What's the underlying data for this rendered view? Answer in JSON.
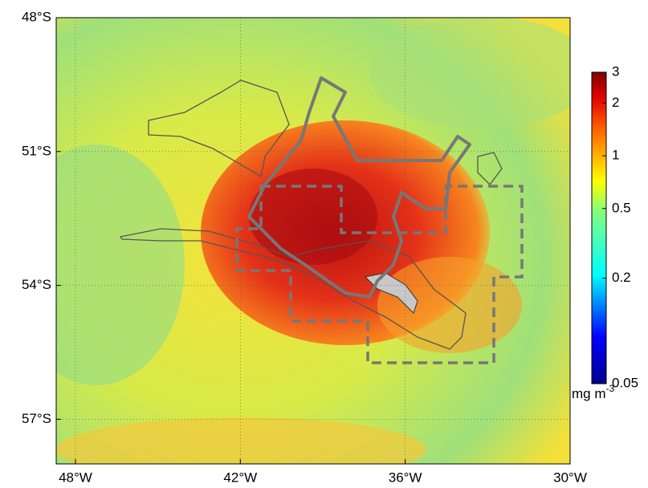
{
  "chart_data": {
    "type": "map",
    "xlim": [
      -48.7,
      -30
    ],
    "ylim": [
      -58,
      -48
    ],
    "xticks": [
      {
        "value": -48,
        "label": "48°W"
      },
      {
        "value": -42,
        "label": "42°W"
      },
      {
        "value": -36,
        "label": "36°W"
      },
      {
        "value": -30,
        "label": "30°W"
      }
    ],
    "yticks": [
      {
        "value": -48,
        "label": "48°S"
      },
      {
        "value": -51,
        "label": "51°S"
      },
      {
        "value": -54,
        "label": "54°S"
      },
      {
        "value": -57,
        "label": "57°S"
      }
    ],
    "grid": true,
    "colorbar": {
      "log": true,
      "lim": [
        0.05,
        3
      ],
      "ticks": [
        3,
        2,
        1,
        0.5,
        0.2,
        0.05
      ],
      "unit": "mg m",
      "unit_exp": "-3"
    }
  }
}
